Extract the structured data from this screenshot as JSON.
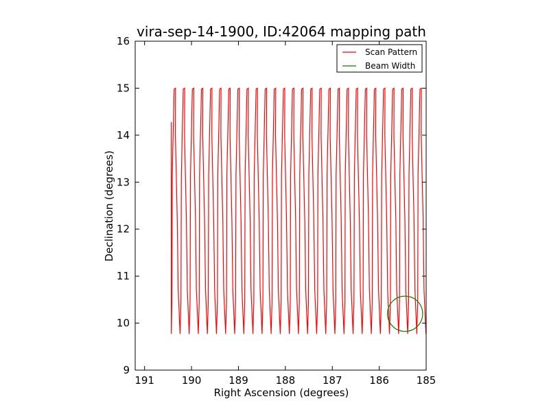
{
  "chart_data": {
    "type": "line",
    "title": "vira-sep-14-1900, ID:42064 mapping path",
    "xlabel": "Right Ascension (degrees)",
    "ylabel": "Declination (degrees)",
    "xlim": [
      191.2,
      185.0
    ],
    "ylim": [
      9,
      16
    ],
    "x_inverted": true,
    "xticks": [
      191,
      190,
      189,
      188,
      187,
      186,
      185
    ],
    "yticks": [
      9,
      10,
      11,
      12,
      13,
      14,
      15,
      16
    ],
    "grid": false,
    "legend_position": "top-right",
    "series": [
      {
        "name": "Scan Pattern",
        "color": "#ff0000",
        "scan_ra_start": 190.43,
        "scan_ra_end": 185.0,
        "scan_count": 56,
        "scan_ra_step": 0.097,
        "dec_min": 9.77,
        "dec_max": 15.0,
        "initial_segment_dec_top": 14.28
      },
      {
        "name": "Beam Width",
        "color": "#007f00",
        "center_ra": 185.45,
        "center_dec": 10.2,
        "radius_deg": 0.375
      }
    ]
  }
}
